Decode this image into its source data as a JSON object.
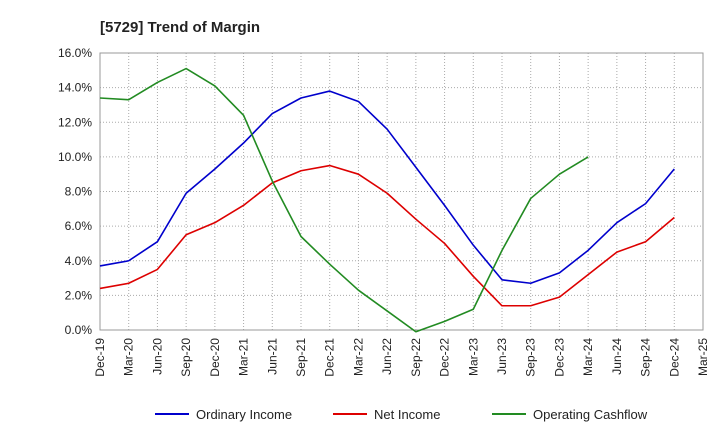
{
  "chart_data": {
    "type": "line",
    "title": "[5729]  Trend of Margin",
    "xlabel": "",
    "ylabel": "",
    "ylim": [
      0,
      16
    ],
    "y_ticks": [
      0,
      2,
      4,
      6,
      8,
      10,
      12,
      14,
      16
    ],
    "y_tick_labels": [
      "0.0%",
      "2.0%",
      "4.0%",
      "6.0%",
      "8.0%",
      "10.0%",
      "12.0%",
      "14.0%",
      "16.0%"
    ],
    "categories": [
      "Dec-19",
      "Mar-20",
      "Jun-20",
      "Sep-20",
      "Dec-20",
      "Mar-21",
      "Jun-21",
      "Sep-21",
      "Dec-21",
      "Mar-22",
      "Jun-22",
      "Sep-22",
      "Dec-22",
      "Mar-23",
      "Jun-23",
      "Sep-23",
      "Dec-23",
      "Mar-24",
      "Jun-24",
      "Sep-24",
      "Dec-24",
      "Mar-25"
    ],
    "grid": true,
    "legend_position": "bottom",
    "series": [
      {
        "name": "Ordinary Income",
        "color": "#0000cc",
        "values": [
          3.7,
          4.0,
          5.1,
          7.9,
          9.3,
          10.8,
          12.5,
          13.4,
          13.8,
          13.2,
          11.6,
          9.4,
          7.2,
          4.9,
          2.9,
          2.7,
          3.3,
          4.6,
          6.2,
          7.3,
          9.3,
          null
        ]
      },
      {
        "name": "Net Income",
        "color": "#dd0000",
        "values": [
          2.4,
          2.7,
          3.5,
          5.5,
          6.2,
          7.2,
          8.5,
          9.2,
          9.5,
          9.0,
          7.9,
          6.4,
          5.0,
          3.1,
          1.4,
          1.4,
          1.9,
          3.2,
          4.5,
          5.1,
          6.5,
          null
        ]
      },
      {
        "name": "Operating Cashflow",
        "color": "#228b22",
        "values": [
          13.4,
          13.3,
          14.3,
          15.1,
          14.1,
          12.4,
          8.6,
          5.4,
          3.8,
          2.3,
          1.1,
          -0.1,
          0.5,
          1.2,
          4.6,
          7.6,
          9.0,
          10.0,
          null,
          null,
          null,
          null
        ]
      }
    ]
  }
}
